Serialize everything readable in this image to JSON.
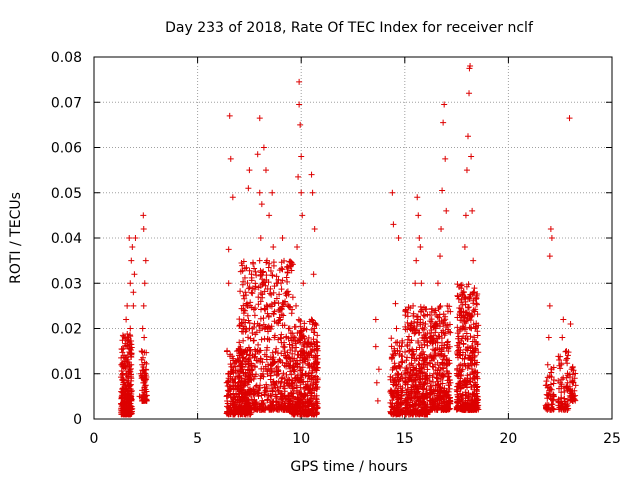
{
  "chart_data": {
    "type": "scatter",
    "title": "Day 233 of 2018, Rate Of TEC Index for receiver nclf",
    "xlabel": "GPS time / hours",
    "ylabel": "ROTI / TECUs",
    "xlim": [
      0,
      25
    ],
    "ylim": [
      0,
      0.08
    ],
    "x_ticks": [
      0,
      5,
      10,
      15,
      20,
      25
    ],
    "x_tick_labels": [
      "0",
      "5",
      "10",
      "15",
      "20",
      "25"
    ],
    "y_ticks": [
      0,
      0.01,
      0.02,
      0.03,
      0.04,
      0.05,
      0.06,
      0.07,
      0.08
    ],
    "y_tick_labels": [
      "0",
      "0.01",
      "0.02",
      "0.03",
      "0.04",
      "0.05",
      "0.06",
      "0.07",
      "0.08"
    ],
    "grid": true,
    "marker": "+",
    "series": [
      {
        "name": "ROTI",
        "color": "#dd0000",
        "points": [
          [
            1.3,
            0.002
          ],
          [
            1.35,
            0.006
          ],
          [
            1.4,
            0.01
          ],
          [
            1.45,
            0.014
          ],
          [
            1.5,
            0.018
          ],
          [
            1.55,
            0.022
          ],
          [
            1.6,
            0.025
          ],
          [
            1.65,
            0.008
          ],
          [
            1.7,
            0.012
          ],
          [
            1.75,
            0.02
          ],
          [
            1.5,
            0.004
          ],
          [
            1.6,
            0.016
          ],
          [
            1.72,
            0.003
          ],
          [
            1.8,
            0.009
          ],
          [
            1.7,
            0.04
          ],
          [
            1.75,
            0.03
          ],
          [
            1.8,
            0.035
          ],
          [
            1.9,
            0.025
          ],
          [
            1.95,
            0.032
          ],
          [
            2.0,
            0.04
          ],
          [
            1.9,
            0.028
          ],
          [
            1.85,
            0.038
          ],
          [
            2.2,
            0.005
          ],
          [
            2.25,
            0.01
          ],
          [
            2.3,
            0.015
          ],
          [
            2.35,
            0.02
          ],
          [
            2.4,
            0.025
          ],
          [
            2.45,
            0.03
          ],
          [
            2.5,
            0.035
          ],
          [
            2.4,
            0.042
          ],
          [
            2.38,
            0.045
          ],
          [
            2.3,
            0.009
          ],
          [
            2.42,
            0.018
          ],
          [
            6.4,
            0.005
          ],
          [
            6.5,
            0.01
          ],
          [
            6.5,
            0.03
          ],
          [
            6.5,
            0.0375
          ],
          [
            6.55,
            0.067
          ],
          [
            6.6,
            0.0575
          ],
          [
            6.7,
            0.049
          ],
          [
            6.8,
            0.008
          ],
          [
            6.9,
            0.015
          ],
          [
            7.0,
            0.004
          ],
          [
            7.1,
            0.012
          ],
          [
            7.2,
            0.02
          ],
          [
            7.3,
            0.028
          ],
          [
            7.4,
            0.025
          ],
          [
            7.45,
            0.051
          ],
          [
            7.5,
            0.055
          ],
          [
            7.6,
            0.032
          ],
          [
            7.7,
            0.003
          ],
          [
            7.8,
            0.015
          ],
          [
            7.9,
            0.0585
          ],
          [
            8.0,
            0.0665
          ],
          [
            8.0,
            0.05
          ],
          [
            8.05,
            0.04
          ],
          [
            8.1,
            0.0475
          ],
          [
            8.15,
            0.03
          ],
          [
            8.2,
            0.06
          ],
          [
            8.25,
            0.02
          ],
          [
            8.3,
            0.055
          ],
          [
            8.35,
            0.035
          ],
          [
            8.4,
            0.012
          ],
          [
            8.45,
            0.045
          ],
          [
            8.5,
            0.025
          ],
          [
            8.55,
            0.0075
          ],
          [
            8.6,
            0.05
          ],
          [
            8.65,
            0.038
          ],
          [
            8.7,
            0.018
          ],
          [
            8.8,
            0.03
          ],
          [
            8.9,
            0.01
          ],
          [
            9.0,
            0.022
          ],
          [
            9.1,
            0.04
          ],
          [
            9.2,
            0.015
          ],
          [
            9.3,
            0.028
          ],
          [
            9.4,
            0.005
          ],
          [
            9.5,
            0.019
          ],
          [
            9.6,
            0.005
          ],
          [
            9.7,
            0.015
          ],
          [
            9.75,
            0.025
          ],
          [
            9.8,
            0.038
          ],
          [
            9.85,
            0.0535
          ],
          [
            9.9,
            0.0745
          ],
          [
            9.9,
            0.0695
          ],
          [
            9.95,
            0.065
          ],
          [
            10.0,
            0.058
          ],
          [
            10.0,
            0.05
          ],
          [
            10.05,
            0.045
          ],
          [
            10.1,
            0.03
          ],
          [
            10.15,
            0.02
          ],
          [
            10.2,
            0.01
          ],
          [
            10.3,
            0.004
          ],
          [
            10.4,
            0.012
          ],
          [
            10.5,
            0.022
          ],
          [
            10.5,
            0.054
          ],
          [
            10.55,
            0.05
          ],
          [
            10.6,
            0.032
          ],
          [
            10.65,
            0.042
          ],
          [
            10.7,
            0.008
          ],
          [
            10.75,
            0.016
          ],
          [
            13.6,
            0.022
          ],
          [
            13.6,
            0.016
          ],
          [
            13.65,
            0.008
          ],
          [
            13.7,
            0.004
          ],
          [
            13.75,
            0.011
          ],
          [
            14.3,
            0.006
          ],
          [
            14.4,
            0.05
          ],
          [
            14.45,
            0.043
          ],
          [
            14.5,
            0.015
          ],
          [
            14.55,
            0.0255
          ],
          [
            14.6,
            0.02
          ],
          [
            14.65,
            0.01
          ],
          [
            14.7,
            0.04
          ],
          [
            14.8,
            0.0045
          ],
          [
            15.0,
            0.004
          ],
          [
            15.1,
            0.01
          ],
          [
            15.2,
            0.015
          ],
          [
            15.3,
            0.02
          ],
          [
            15.4,
            0.025
          ],
          [
            15.5,
            0.03
          ],
          [
            15.55,
            0.035
          ],
          [
            15.6,
            0.049
          ],
          [
            15.65,
            0.045
          ],
          [
            15.7,
            0.04
          ],
          [
            15.75,
            0.038
          ],
          [
            15.8,
            0.03
          ],
          [
            15.85,
            0.02
          ],
          [
            15.9,
            0.012
          ],
          [
            16.0,
            0.008
          ],
          [
            16.1,
            0.005
          ],
          [
            16.3,
            0.004
          ],
          [
            16.4,
            0.01
          ],
          [
            16.5,
            0.02
          ],
          [
            16.6,
            0.03
          ],
          [
            16.7,
            0.036
          ],
          [
            16.75,
            0.042
          ],
          [
            16.8,
            0.0505
          ],
          [
            16.85,
            0.0655
          ],
          [
            16.9,
            0.0695
          ],
          [
            16.95,
            0.0575
          ],
          [
            17.0,
            0.046
          ],
          [
            17.05,
            0.025
          ],
          [
            17.1,
            0.015
          ],
          [
            17.2,
            0.008
          ],
          [
            17.6,
            0.005
          ],
          [
            17.7,
            0.012
          ],
          [
            17.8,
            0.02
          ],
          [
            17.85,
            0.028
          ],
          [
            17.9,
            0.038
          ],
          [
            17.95,
            0.045
          ],
          [
            18.0,
            0.055
          ],
          [
            18.05,
            0.0625
          ],
          [
            18.1,
            0.072
          ],
          [
            18.12,
            0.0775
          ],
          [
            18.15,
            0.078
          ],
          [
            18.2,
            0.058
          ],
          [
            18.25,
            0.046
          ],
          [
            18.3,
            0.035
          ],
          [
            18.35,
            0.028
          ],
          [
            18.4,
            0.02
          ],
          [
            18.45,
            0.012
          ],
          [
            18.5,
            0.005
          ],
          [
            21.8,
            0.003
          ],
          [
            21.85,
            0.0075
          ],
          [
            21.9,
            0.012
          ],
          [
            21.95,
            0.018
          ],
          [
            22.0,
            0.025
          ],
          [
            22.0,
            0.036
          ],
          [
            22.05,
            0.042
          ],
          [
            22.1,
            0.04
          ],
          [
            22.15,
            0.005
          ],
          [
            22.4,
            0.004
          ],
          [
            22.5,
            0.008
          ],
          [
            22.55,
            0.012
          ],
          [
            22.6,
            0.018
          ],
          [
            22.65,
            0.022
          ],
          [
            22.7,
            0.006
          ],
          [
            22.8,
            0.015
          ],
          [
            22.85,
            0.002
          ],
          [
            22.95,
            0.0665
          ],
          [
            23.0,
            0.021
          ],
          [
            23.05,
            0.011
          ],
          [
            23.1,
            0.008
          ],
          [
            23.15,
            0.005
          ],
          [
            23.2,
            0.009
          ]
        ]
      }
    ],
    "dense_clusters": [
      {
        "x_range": [
          1.3,
          1.85
        ],
        "y_range": [
          0.001,
          0.019
        ],
        "n": 260
      },
      {
        "x_range": [
          2.3,
          2.55
        ],
        "y_range": [
          0.004,
          0.015
        ],
        "n": 70
      },
      {
        "x_range": [
          6.4,
          7.6
        ],
        "y_range": [
          0.001,
          0.016
        ],
        "n": 300
      },
      {
        "x_range": [
          7.0,
          9.6
        ],
        "y_range": [
          0.002,
          0.035
        ],
        "n": 650
      },
      {
        "x_range": [
          9.55,
          10.8
        ],
        "y_range": [
          0.001,
          0.022
        ],
        "n": 420
      },
      {
        "x_range": [
          14.3,
          14.9
        ],
        "y_range": [
          0.001,
          0.018
        ],
        "n": 160
      },
      {
        "x_range": [
          15.0,
          16.1
        ],
        "y_range": [
          0.001,
          0.025
        ],
        "n": 380
      },
      {
        "x_range": [
          16.2,
          17.2
        ],
        "y_range": [
          0.002,
          0.025
        ],
        "n": 330
      },
      {
        "x_range": [
          17.5,
          18.55
        ],
        "y_range": [
          0.002,
          0.03
        ],
        "n": 420
      },
      {
        "x_range": [
          21.8,
          22.2
        ],
        "y_range": [
          0.002,
          0.012
        ],
        "n": 50
      },
      {
        "x_range": [
          22.4,
          22.9
        ],
        "y_range": [
          0.002,
          0.015
        ],
        "n": 70
      },
      {
        "x_range": [
          22.95,
          23.25
        ],
        "y_range": [
          0.004,
          0.012
        ],
        "n": 40
      }
    ]
  }
}
